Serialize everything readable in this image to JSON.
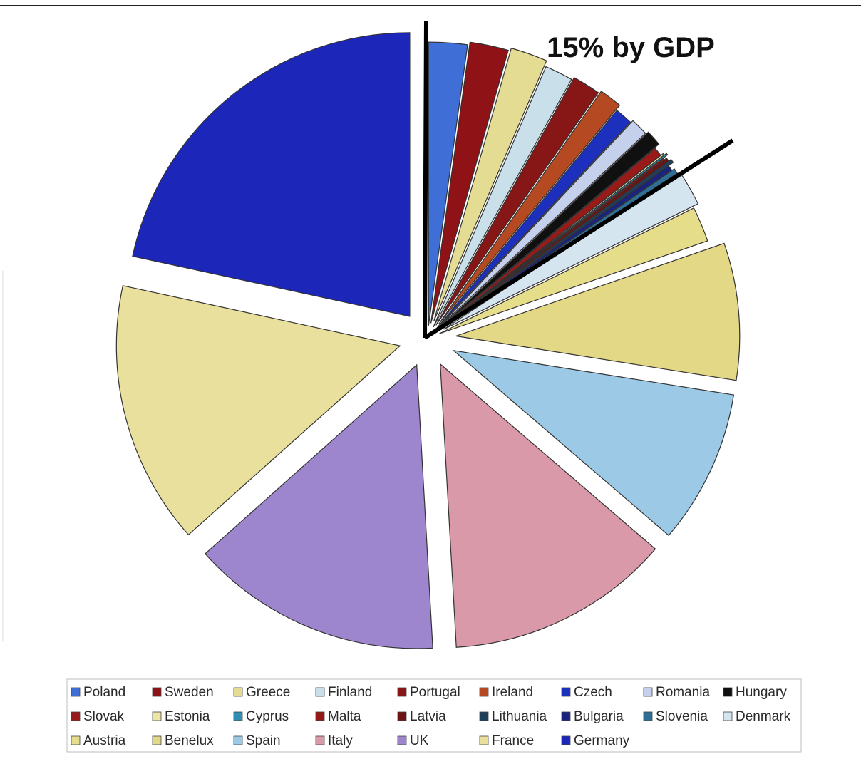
{
  "chart_data": {
    "type": "pie",
    "title": "15% by GDP",
    "slices": [
      {
        "label": "Poland",
        "value": 2.2,
        "color": "#3f6fd6"
      },
      {
        "label": "Sweden",
        "value": 2.2,
        "color": "#8e1216"
      },
      {
        "label": "Greece",
        "value": 2.1,
        "color": "#e5dc94"
      },
      {
        "label": "Finland",
        "value": 1.6,
        "color": "#c9dfea"
      },
      {
        "label": "Portugal",
        "value": 1.6,
        "color": "#871616"
      },
      {
        "label": "Ireland",
        "value": 1.3,
        "color": "#b54a22"
      },
      {
        "label": "Czech",
        "value": 1.0,
        "color": "#1c2fbd"
      },
      {
        "label": "Romania",
        "value": 1.0,
        "color": "#c5d0ec"
      },
      {
        "label": "Hungary",
        "value": 0.9,
        "color": "#101010"
      },
      {
        "label": "Slovak",
        "value": 0.5,
        "color": "#9a1a1a"
      },
      {
        "label": "Estonia",
        "value": 0.1,
        "color": "#ece6a6"
      },
      {
        "label": "Cyprus",
        "value": 0.1,
        "color": "#2f8fb0"
      },
      {
        "label": "Malta",
        "value": 0.1,
        "color": "#981818"
      },
      {
        "label": "Latvia",
        "value": 0.2,
        "color": "#6e1313"
      },
      {
        "label": "Lithuania",
        "value": 0.2,
        "color": "#1f3f5a"
      },
      {
        "label": "Bulgaria",
        "value": 0.3,
        "color": "#1a237e"
      },
      {
        "label": "Slovenia",
        "value": 0.3,
        "color": "#2f6f95"
      },
      {
        "label": "Denmark",
        "value": 2.0,
        "color": "#d5e5ef"
      },
      {
        "label": "Austria",
        "value": 2.0,
        "color": "#e5dd8a"
      },
      {
        "label": "Benelux",
        "value": 7.8,
        "color": "#e3d886"
      },
      {
        "label": "Spain",
        "value": 8.8,
        "color": "#9cc9e6"
      },
      {
        "label": "Italy",
        "value": 12.8,
        "color": "#d999a8"
      },
      {
        "label": "UK",
        "value": 14.3,
        "color": "#9e86cf"
      },
      {
        "label": "France",
        "value": 15.0,
        "color": "#e8e09c"
      },
      {
        "label": "Germany",
        "value": 21.6,
        "color": "#1c26b8"
      }
    ],
    "legend_order": [
      [
        "Poland",
        "Sweden",
        "Greece",
        "Finland",
        "Portugal",
        "Ireland",
        "Czech",
        "Romania",
        "Hungary"
      ],
      [
        "Slovak",
        "Estonia",
        "Cyprus",
        "Malta",
        "Latvia",
        "Lithuania",
        "Bulgaria",
        "Slovenia",
        "Denmark"
      ],
      [
        "Austria",
        "Benelux",
        "Spain",
        "Italy",
        "UK",
        "France",
        "Germany"
      ]
    ],
    "legend_placement": "bottom",
    "exploded": true,
    "annotation_lines": "two lines enclosing the small slices"
  }
}
